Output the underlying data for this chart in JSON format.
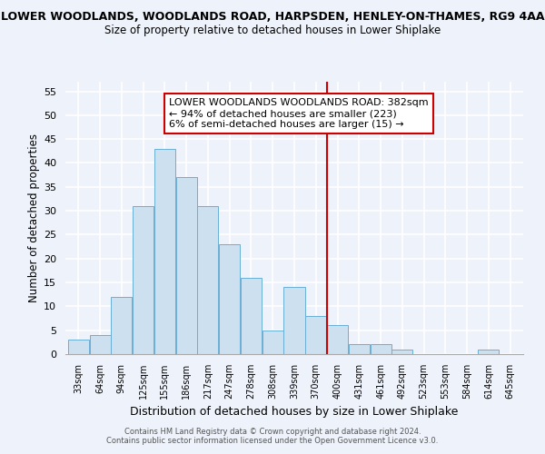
{
  "title_line1": "LOWER WOODLANDS, WOODLANDS ROAD, HARPSDEN, HENLEY-ON-THAMES, RG9 4AA",
  "title_line2": "Size of property relative to detached houses in Lower Shiplake",
  "xlabel": "Distribution of detached houses by size in Lower Shiplake",
  "ylabel": "Number of detached properties",
  "bin_labels": [
    "33sqm",
    "64sqm",
    "94sqm",
    "125sqm",
    "155sqm",
    "186sqm",
    "217sqm",
    "247sqm",
    "278sqm",
    "308sqm",
    "339sqm",
    "370sqm",
    "400sqm",
    "431sqm",
    "461sqm",
    "492sqm",
    "523sqm",
    "553sqm",
    "584sqm",
    "614sqm",
    "645sqm"
  ],
  "bar_heights": [
    3,
    4,
    12,
    31,
    43,
    37,
    31,
    23,
    16,
    5,
    14,
    8,
    6,
    2,
    2,
    1,
    0,
    0,
    0,
    1,
    0
  ],
  "bar_color": "#cce0f0",
  "bar_edge_color": "#6aafd6",
  "ylim": [
    0,
    57
  ],
  "yticks": [
    0,
    5,
    10,
    15,
    20,
    25,
    30,
    35,
    40,
    45,
    50,
    55
  ],
  "vline_x_index": 11.5,
  "vline_color": "#cc0000",
  "annotation_line1": "LOWER WOODLANDS WOODLANDS ROAD: 382sqm",
  "annotation_line2": "← 94% of detached houses are smaller (223)",
  "annotation_line3": "6% of semi-detached houses are larger (15) →",
  "footer_line1": "Contains HM Land Registry data © Crown copyright and database right 2024.",
  "footer_line2": "Contains public sector information licensed under the Open Government Licence v3.0.",
  "background_color": "#eef2fa",
  "grid_color": "#ffffff"
}
